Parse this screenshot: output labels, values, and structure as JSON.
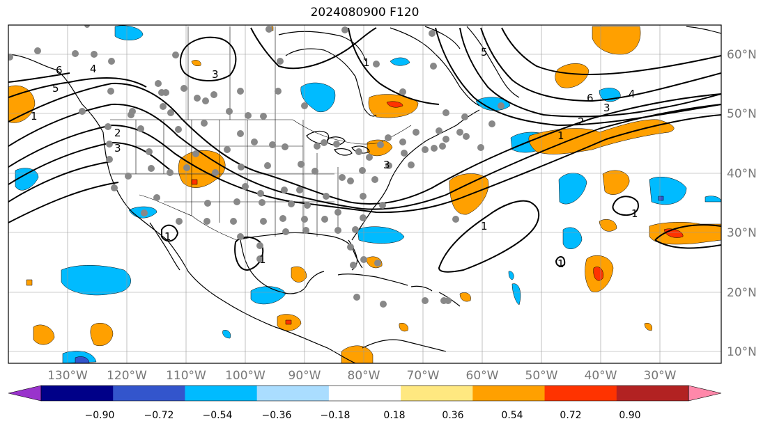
{
  "title": "2024080900 F120",
  "map": {
    "lon_labels": [
      "130°W",
      "120°W",
      "110°W",
      "100°W",
      "90°W",
      "80°W",
      "70°W",
      "60°W",
      "50°W",
      "40°W",
      "30°W"
    ],
    "lat_labels": [
      "60°N",
      "50°N",
      "40°N",
      "30°N",
      "20°N",
      "10°N"
    ],
    "contour_labels": [
      "1",
      "2",
      "3",
      "4",
      "5",
      "6",
      "1",
      "2",
      "3",
      "4",
      "5",
      "6",
      "3",
      "3",
      "1",
      "1",
      "1",
      "1",
      "1",
      "1"
    ]
  },
  "colorbar": {
    "ticks": [
      "−0.90",
      "−0.72",
      "−0.54",
      "−0.36",
      "−0.18",
      "0.18",
      "0.36",
      "0.54",
      "0.72",
      "0.90"
    ],
    "colors": [
      "#9933cc",
      "#000088",
      "#3355cc",
      "#00bbff",
      "#aaddff",
      "#ffffff",
      "#ffe880",
      "#ffa000",
      "#ff3300",
      "#b22222",
      "#ff88aa"
    ]
  }
}
